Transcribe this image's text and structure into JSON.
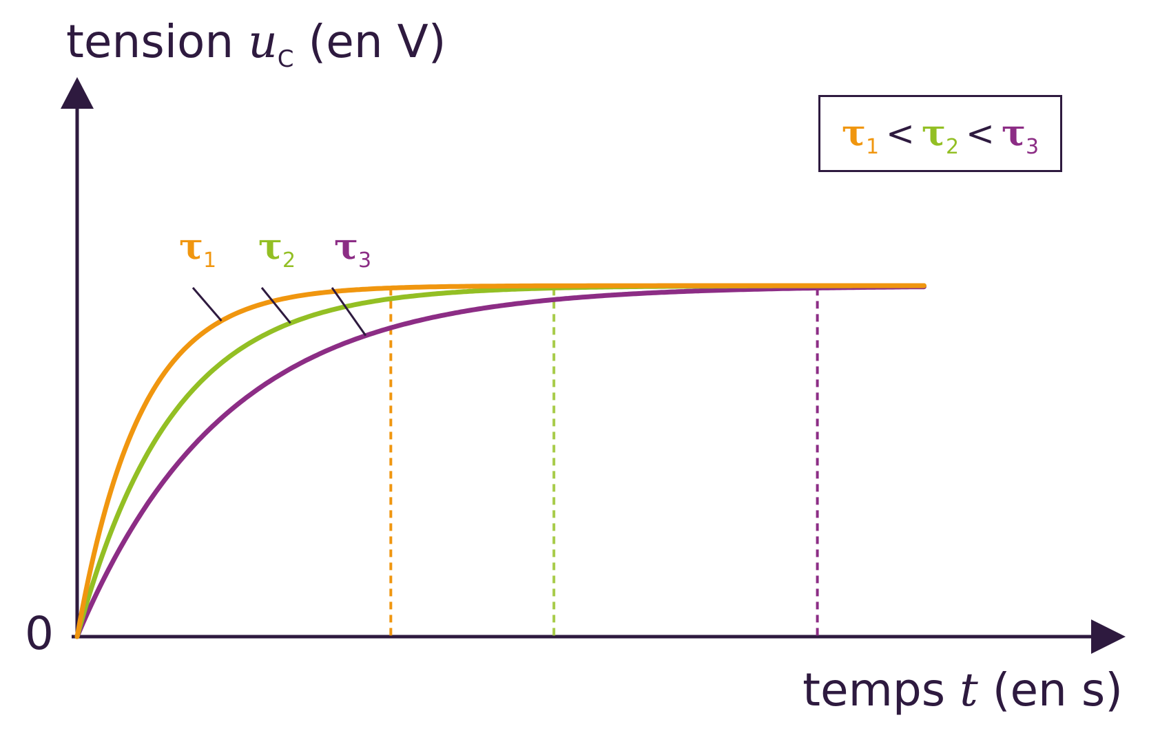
{
  "chart_data": {
    "type": "line",
    "title": "",
    "ylabel": {
      "prefix": "tension ",
      "var": "u",
      "sub": "C",
      "suffix": " (en V)"
    },
    "xlabel": {
      "prefix": "temps ",
      "var": "t",
      "suffix": " (en s)"
    },
    "origin_label": "0",
    "series": [
      {
        "name": "τ1",
        "symbol": "τ",
        "index": "1",
        "color": "#f0960f",
        "tau": 1.0
      },
      {
        "name": "τ2",
        "symbol": "τ",
        "index": "2",
        "color": "#93bf24",
        "tau": 1.52
      },
      {
        "name": "τ3",
        "symbol": "τ",
        "index": "3",
        "color": "#8c2d85",
        "tau": 2.36
      }
    ],
    "legend": {
      "placement": "top-right",
      "relation": "<",
      "items": [
        {
          "symbol": "τ",
          "index": "1",
          "color": "#f0960f"
        },
        {
          "symbol": "τ",
          "index": "2",
          "color": "#93bf24"
        },
        {
          "symbol": "τ",
          "index": "3",
          "color": "#8c2d85"
        }
      ]
    },
    "markers": [
      {
        "series": "τ1",
        "t": 5.0,
        "color": "#f0960f"
      },
      {
        "series": "τ2",
        "t": 7.6,
        "color": "#a8cc4a"
      },
      {
        "series": "τ3",
        "t": 11.8,
        "color": "#8c2d85"
      }
    ],
    "xlim": [
      0,
      15
    ],
    "ylim": [
      0,
      1.2
    ],
    "asymptote": 1.0,
    "grid": false,
    "axis_color": "#2e1a3f"
  }
}
